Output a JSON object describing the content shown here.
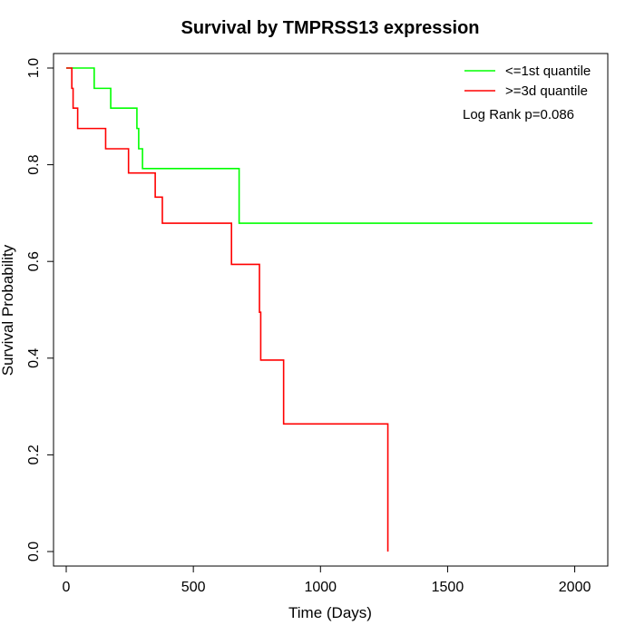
{
  "chart_data": {
    "type": "line",
    "title": "Survival by TMPRSS13 expression",
    "xlabel": "Time (Days)",
    "ylabel": "Survival Probability",
    "xlim": [
      -50,
      2130
    ],
    "ylim": [
      -0.03,
      1.03
    ],
    "x_ticks": [
      0,
      500,
      1000,
      1500,
      2000
    ],
    "y_ticks": [
      0.0,
      0.2,
      0.4,
      0.6,
      0.8,
      1.0
    ],
    "x_tick_labels": [
      "0",
      "500",
      "1000",
      "1500",
      "2000"
    ],
    "y_tick_labels": [
      "0.0",
      "0.2",
      "0.4",
      "0.6",
      "0.8",
      "1.0"
    ],
    "grid": false,
    "legend_position": "top-right",
    "annotation": "Log Rank p=0.086",
    "series": [
      {
        "name": "<=1st quantile",
        "color": "#00FF00",
        "steps": [
          [
            0,
            1.0
          ],
          [
            110,
            0.958
          ],
          [
            175,
            0.917
          ],
          [
            278,
            0.875
          ],
          [
            285,
            0.833
          ],
          [
            300,
            0.792
          ],
          [
            680,
            0.679
          ],
          [
            2070,
            0.679
          ]
        ]
      },
      {
        "name": ">=3d quantile",
        "color": "#FF0000",
        "steps": [
          [
            0,
            1.0
          ],
          [
            22,
            0.958
          ],
          [
            27,
            0.917
          ],
          [
            45,
            0.875
          ],
          [
            155,
            0.833
          ],
          [
            245,
            0.783
          ],
          [
            350,
            0.733
          ],
          [
            378,
            0.679
          ],
          [
            650,
            0.594
          ],
          [
            760,
            0.495
          ],
          [
            765,
            0.396
          ],
          [
            855,
            0.264
          ],
          [
            1265,
            0.0
          ]
        ]
      }
    ]
  }
}
